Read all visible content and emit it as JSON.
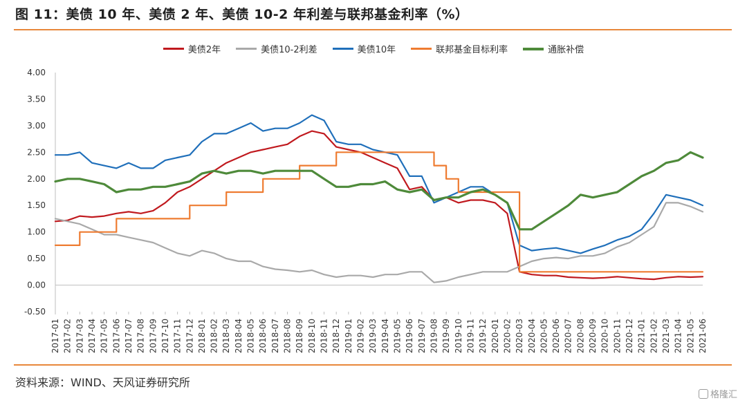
{
  "header": {
    "title": "图 11：美债 10 年、美债 2 年、美债 10-2 年利差与联邦基金利率（%）"
  },
  "footer": {
    "source": "资料来源：WIND、天风证券研究所",
    "watermark": "格隆汇"
  },
  "colors": {
    "accent_rule": "#e8873a"
  },
  "chart_data": {
    "type": "line",
    "title": "",
    "xlabel": "",
    "ylabel": "",
    "ylim": [
      -0.5,
      4.0
    ],
    "grid": false,
    "legend_position": "top-center",
    "y_ticks": [
      "4.00",
      "3.50",
      "3.00",
      "2.50",
      "2.00",
      "1.50",
      "1.00",
      "0.50",
      "0.00",
      "-0.50"
    ],
    "x_ticks": [
      "2017-01",
      "2017-02",
      "2017-03",
      "2017-04",
      "2017-05",
      "2017-06",
      "2017-07",
      "2017-08",
      "2017-09",
      "2017-10",
      "2017-11",
      "2017-12",
      "2018-01",
      "2018-02",
      "2018-03",
      "2018-04",
      "2018-05",
      "2018-06",
      "2018-07",
      "2018-08",
      "2018-09",
      "2018-10",
      "2018-11",
      "2018-12",
      "2019-01",
      "2019-02",
      "2019-03",
      "2019-04",
      "2019-05",
      "2019-06",
      "2019-07",
      "2019-08",
      "2019-09",
      "2019-10",
      "2019-11",
      "2019-12",
      "2020-01",
      "2020-02",
      "2020-03",
      "2020-04",
      "2020-05",
      "2020-06",
      "2020-07",
      "2020-08",
      "2020-09",
      "2020-10",
      "2020-11",
      "2020-12",
      "2021-01",
      "2021-02",
      "2021-03",
      "2021-04",
      "2021-05",
      "2021-06"
    ],
    "series": [
      {
        "name": "美债2年",
        "color": "#c0191e",
        "step": false,
        "values": [
          1.2,
          1.22,
          1.3,
          1.28,
          1.3,
          1.35,
          1.38,
          1.35,
          1.4,
          1.55,
          1.75,
          1.85,
          2.0,
          2.15,
          2.3,
          2.4,
          2.5,
          2.55,
          2.6,
          2.65,
          2.8,
          2.9,
          2.85,
          2.6,
          2.55,
          2.5,
          2.4,
          2.3,
          2.2,
          1.8,
          1.85,
          1.6,
          1.65,
          1.55,
          1.6,
          1.6,
          1.55,
          1.35,
          0.25,
          0.2,
          0.18,
          0.18,
          0.15,
          0.14,
          0.13,
          0.14,
          0.16,
          0.14,
          0.12,
          0.11,
          0.14,
          0.16,
          0.15,
          0.16
        ]
      },
      {
        "name": "美债10-2利差",
        "color": "#a9a9a9",
        "step": false,
        "values": [
          1.25,
          1.2,
          1.15,
          1.05,
          0.95,
          0.95,
          0.9,
          0.85,
          0.8,
          0.7,
          0.6,
          0.55,
          0.65,
          0.6,
          0.5,
          0.45,
          0.45,
          0.35,
          0.3,
          0.28,
          0.25,
          0.28,
          0.2,
          0.15,
          0.18,
          0.18,
          0.15,
          0.2,
          0.2,
          0.25,
          0.25,
          0.05,
          0.08,
          0.15,
          0.2,
          0.25,
          0.25,
          0.25,
          0.35,
          0.45,
          0.5,
          0.52,
          0.5,
          0.55,
          0.55,
          0.6,
          0.72,
          0.8,
          0.95,
          1.1,
          1.55,
          1.55,
          1.48,
          1.38
        ]
      },
      {
        "name": "美债10年",
        "color": "#1f6fba",
        "step": false,
        "values": [
          2.45,
          2.45,
          2.5,
          2.3,
          2.25,
          2.2,
          2.3,
          2.2,
          2.2,
          2.35,
          2.4,
          2.45,
          2.7,
          2.85,
          2.85,
          2.95,
          3.05,
          2.9,
          2.95,
          2.95,
          3.05,
          3.2,
          3.1,
          2.7,
          2.65,
          2.65,
          2.55,
          2.5,
          2.45,
          2.05,
          2.05,
          1.55,
          1.65,
          1.75,
          1.85,
          1.85,
          1.7,
          1.55,
          0.75,
          0.65,
          0.68,
          0.7,
          0.65,
          0.6,
          0.68,
          0.75,
          0.85,
          0.92,
          1.05,
          1.35,
          1.7,
          1.65,
          1.6,
          1.5
        ]
      },
      {
        "name": "联邦基金目标利率",
        "color": "#ee7b30",
        "step": true,
        "values": [
          0.75,
          0.75,
          1.0,
          1.0,
          1.0,
          1.25,
          1.25,
          1.25,
          1.25,
          1.25,
          1.25,
          1.5,
          1.5,
          1.5,
          1.75,
          1.75,
          1.75,
          2.0,
          2.0,
          2.0,
          2.25,
          2.25,
          2.25,
          2.5,
          2.5,
          2.5,
          2.5,
          2.5,
          2.5,
          2.5,
          2.5,
          2.25,
          2.0,
          1.75,
          1.75,
          1.75,
          1.75,
          1.75,
          0.25,
          0.25,
          0.25,
          0.25,
          0.25,
          0.25,
          0.25,
          0.25,
          0.25,
          0.25,
          0.25,
          0.25,
          0.25,
          0.25,
          0.25,
          0.25
        ]
      },
      {
        "name": "通胀补偿",
        "color": "#4e8a3a",
        "step": false,
        "values": [
          1.95,
          2.0,
          2.0,
          1.95,
          1.9,
          1.75,
          1.8,
          1.8,
          1.85,
          1.85,
          1.9,
          1.95,
          2.1,
          2.15,
          2.1,
          2.15,
          2.15,
          2.1,
          2.15,
          2.15,
          2.15,
          2.15,
          2.0,
          1.85,
          1.85,
          1.9,
          1.9,
          1.95,
          1.8,
          1.75,
          1.8,
          1.6,
          1.65,
          1.65,
          1.75,
          1.8,
          1.7,
          1.55,
          1.05,
          1.05,
          1.2,
          1.35,
          1.5,
          1.7,
          1.65,
          1.7,
          1.75,
          1.9,
          2.05,
          2.15,
          2.3,
          2.35,
          2.5,
          2.4
        ]
      }
    ]
  }
}
